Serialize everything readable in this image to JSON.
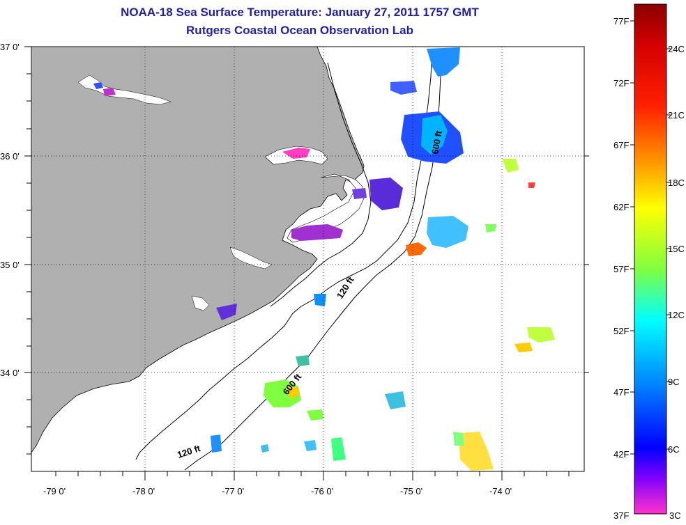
{
  "title": "NOAA-18 Sea Surface Temperature:  January 27, 2011 1757 GMT",
  "subtitle": "Rutgers Coastal Ocean Observation Lab",
  "map": {
    "lat_labels": [
      "37 0'",
      "36 0'",
      "35 0'",
      "34 0'"
    ],
    "lon_labels": [
      "-79 0'",
      "-78 0'",
      "-77 0'",
      "-76 0'",
      "-75 0'",
      "-74 0'"
    ],
    "contour_labels": [
      "600 ft",
      "120 ft",
      "600 ft",
      "120 ft"
    ],
    "land_color": "#b0b0b0",
    "ocean_color": "#ffffff"
  },
  "colorbar": {
    "fahrenheit_labels": [
      "77F",
      "72F",
      "67F",
      "62F",
      "57F",
      "52F",
      "47F",
      "42F",
      "37F"
    ],
    "celsius_labels": [
      "24C",
      "21C",
      "18C",
      "15C",
      "12C",
      "9C",
      "6C",
      "3C"
    ],
    "colors": [
      "#8b0000",
      "#ff0000",
      "#ff8c00",
      "#ffff00",
      "#7fff00",
      "#00ffff",
      "#0080ff",
      "#0000ff",
      "#8000ff",
      "#ff33cc"
    ]
  }
}
